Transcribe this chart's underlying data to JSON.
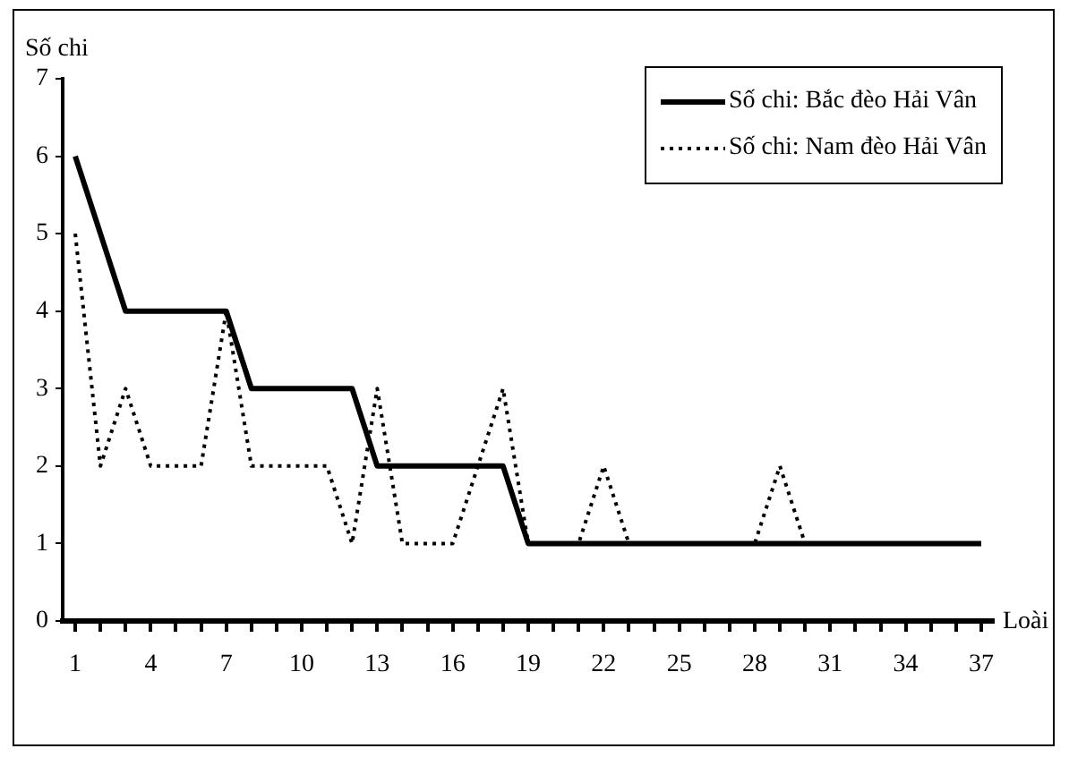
{
  "chart_data": {
    "type": "line",
    "xlabel": "Loài",
    "ylabel": "Số chi",
    "categories": [
      "1",
      null,
      null,
      "4",
      null,
      null,
      "7",
      null,
      null,
      "10",
      null,
      null,
      "13",
      null,
      null,
      "16",
      null,
      null,
      "19",
      null,
      null,
      "22",
      null,
      null,
      "25",
      null,
      null,
      "28",
      null,
      null,
      "31",
      null,
      null,
      "34",
      null,
      null,
      "37"
    ],
    "series": [
      {
        "name": "Số chi: Bắc đèo Hải Vân",
        "color": "#000000",
        "line_style": "solid",
        "values": [
          6,
          5,
          4,
          4,
          4,
          4,
          4,
          3,
          3,
          3,
          3,
          3,
          2,
          2,
          2,
          2,
          2,
          2,
          1,
          1,
          1,
          1,
          1,
          1,
          1,
          1,
          1,
          1,
          1,
          1,
          1,
          1,
          1,
          1,
          1,
          1,
          1
        ]
      },
      {
        "name": "Số chi: Nam đèo Hải Vân",
        "color": "#000000",
        "line_style": "dotted",
        "values": [
          5,
          2,
          3,
          2,
          2,
          2,
          4,
          2,
          2,
          2,
          2,
          1,
          3,
          1,
          1,
          1,
          2,
          3,
          1,
          1,
          1,
          2,
          1,
          1,
          1,
          1,
          1,
          1,
          2,
          1,
          null,
          null,
          null,
          null,
          null,
          null,
          null
        ]
      }
    ],
    "ylim": [
      0,
      7
    ],
    "yticks": [
      0,
      1,
      2,
      3,
      4,
      5,
      6,
      7
    ],
    "grid": false,
    "legend": "top right",
    "marker": "none"
  }
}
